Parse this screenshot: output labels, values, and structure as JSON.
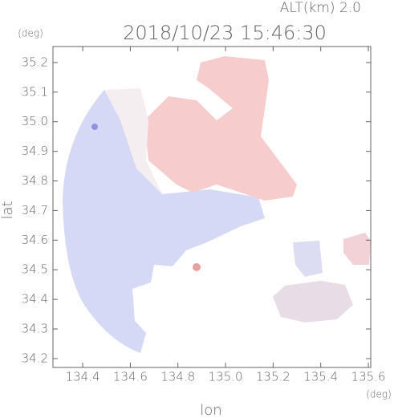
{
  "chart_data": {
    "type": "map",
    "title": "2018/10/23 15:46:30",
    "subtitle": "ALT(km) 2.0",
    "x_label": "lon",
    "y_label": "lat",
    "x_unit": "(deg)",
    "y_unit": "(deg)",
    "xlim": [
      134.275,
      135.61
    ],
    "ylim": [
      34.17,
      35.254
    ],
    "xticks": [
      134.4,
      134.6,
      134.8,
      {
        "value": 135,
        "label": "135.0"
      },
      135.2,
      135.4,
      135.6
    ],
    "yticks": [
      34.2,
      34.3,
      34.4,
      34.5,
      34.6,
      34.7,
      34.8,
      34.9,
      {
        "value": 35,
        "label": "35.0"
      },
      35.1,
      35.2
    ]
  }
}
